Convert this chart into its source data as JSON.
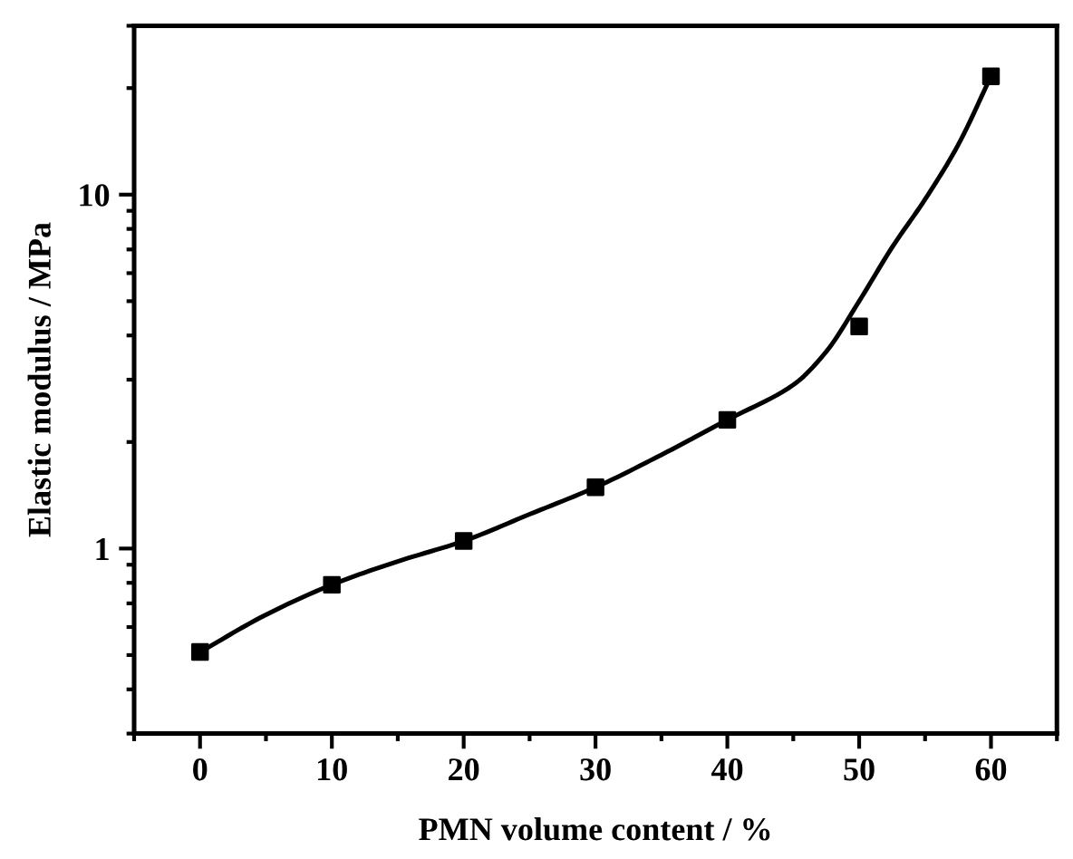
{
  "chart_data": {
    "type": "scatter",
    "xlabel": "PMN volume content / %",
    "ylabel": "Elastic modulus / MPa",
    "log": "y",
    "xlim": [
      -5,
      65
    ],
    "ylim": [
      0.3,
      30
    ],
    "xticks": [
      0,
      10,
      20,
      30,
      40,
      50,
      60
    ],
    "yticks": [
      1,
      10
    ],
    "grid": false,
    "legend": false,
    "marker": "square",
    "series": [
      {
        "color": "#000000",
        "x": [
          0,
          10,
          20,
          30,
          40,
          50,
          60
        ],
        "values": [
          0.51,
          0.79,
          1.05,
          1.49,
          2.31,
          4.24,
          21.6
        ]
      },
      {
        "type": "line",
        "color": "#000000",
        "marker": "none",
        "line_style": "solid",
        "x": [
          0,
          5,
          10,
          15,
          20,
          25,
          30,
          35,
          40,
          45,
          47.5,
          50,
          52.5,
          55,
          57.5,
          60
        ],
        "values": [
          0.51,
          0.65,
          0.79,
          0.92,
          1.05,
          1.25,
          1.49,
          1.84,
          2.31,
          2.9,
          3.6,
          5.0,
          7.1,
          9.7,
          13.8,
          21.6
        ]
      }
    ]
  }
}
